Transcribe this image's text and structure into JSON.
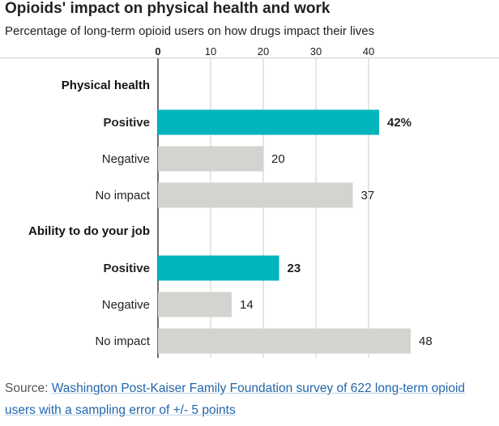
{
  "title": "Opioids' impact on physical health and work",
  "subtitle": "Percentage of long-term opioid users on how drugs impact their lives",
  "source": {
    "label": "Source:",
    "link_text": "Washington Post-Kaiser Family Foundation survey of 622 long-term opioid users with a sampling error of +/- 5 points"
  },
  "colors": {
    "highlight": "#00b5bd",
    "bar": "#d3d3cf",
    "grid": "#cccccc",
    "axis": "#222222"
  },
  "chart_data": {
    "type": "bar",
    "orientation": "horizontal",
    "xlim": [
      0,
      48
    ],
    "ticks": [
      0,
      10,
      20,
      30,
      40
    ],
    "grid": true,
    "groups": [
      {
        "name": "Physical health",
        "bars": [
          {
            "label": "Positive",
            "value": 42,
            "value_label": "42%",
            "highlight": true
          },
          {
            "label": "Negative",
            "value": 20,
            "value_label": "20",
            "highlight": false
          },
          {
            "label": "No impact",
            "value": 37,
            "value_label": "37",
            "highlight": false
          }
        ]
      },
      {
        "name": "Ability to do your job",
        "bars": [
          {
            "label": "Positive",
            "value": 23,
            "value_label": "23",
            "highlight": true
          },
          {
            "label": "Negative",
            "value": 14,
            "value_label": "14",
            "highlight": false
          },
          {
            "label": "No impact",
            "value": 48,
            "value_label": "48",
            "highlight": false
          }
        ]
      }
    ]
  }
}
